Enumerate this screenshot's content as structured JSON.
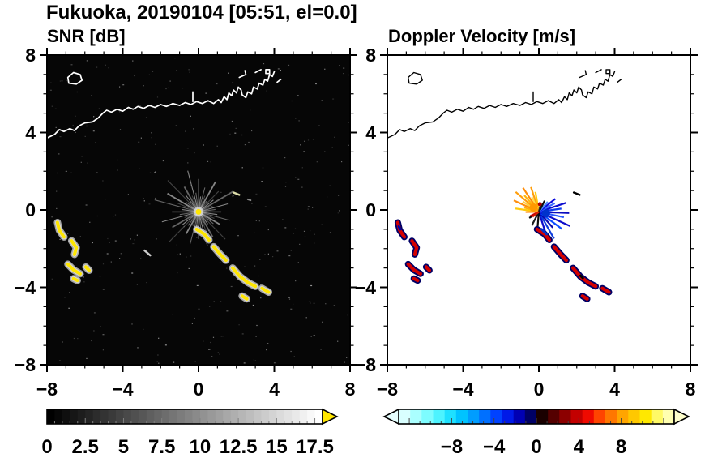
{
  "title": "Fukuoka, 20190104 [05:51, el=0.0]",
  "panels": [
    {
      "id": "snr",
      "label": "SNR [dB]",
      "bg": "#060606",
      "coast_color": "#ffffff",
      "axis": {
        "min": -8,
        "max": 8,
        "major_ticks": [
          -8,
          -4,
          0,
          4,
          8
        ],
        "tick_labels": [
          "−8",
          "−4",
          "0",
          "4",
          "8"
        ]
      },
      "colorbar": {
        "min": 0,
        "max": 18,
        "ticks": [
          0,
          2.5,
          5,
          7.5,
          10,
          12.5,
          15,
          17.5
        ],
        "labels": [
          "0",
          "2.5",
          "5",
          "7.5",
          "10",
          "12.5",
          "15",
          "17.5"
        ],
        "overflow_color": "#ffe600"
      }
    },
    {
      "id": "velocity",
      "label": "Doppler Velocity [m/s]",
      "bg": "#ffffff",
      "coast_color": "#000000",
      "axis": {
        "min": -8,
        "max": 8,
        "major_ticks": [
          -8,
          -4,
          0,
          4,
          8
        ],
        "tick_labels": [
          "−8",
          "−4",
          "0",
          "4",
          "8"
        ]
      },
      "colorbar": {
        "min": -13,
        "max": 13,
        "ticks": [
          -8,
          -4,
          0,
          4,
          8
        ],
        "labels": [
          "−8",
          "−4",
          "0",
          "4",
          "8"
        ],
        "under_color": "#e6ffff",
        "over_color": "#ffffcc",
        "segments": [
          "#d9ffff",
          "#aaffff",
          "#7dfcff",
          "#4df3ff",
          "#1ee0ff",
          "#00c3ff",
          "#009dff",
          "#0070ff",
          "#0042ff",
          "#001ae8",
          "#0000b4",
          "#000066",
          "#1a0000",
          "#550000",
          "#8c0000",
          "#c30000",
          "#ef0a00",
          "#ff4400",
          "#ff7700",
          "#ffa500",
          "#ffc800",
          "#ffe800",
          "#fff966",
          "#ffffb0"
        ]
      }
    }
  ],
  "chart_data": {
    "type": "heatmap",
    "title": "Fukuoka, 20190104 [05:51, el=0.0]",
    "description": "Dual-panel Doppler radar PPI scan at 0.0 deg elevation: left panel SNR [dB] (0 to 17.5 dB grayscale, black background), right panel Doppler Velocity [m/s] (-8 to 8 m/s diverging cyan-blue-black-red-yellow scale, white background). Coastline of Fukuoka bay overlaid; radar at origin with radial clutter streaks; curved precipitation/echo bands southwest and southeast of the radar.",
    "x_range": [
      -8,
      8
    ],
    "y_range": [
      -8,
      8
    ],
    "x_ticks": [
      -8,
      -4,
      0,
      4,
      8
    ],
    "y_ticks": [
      -8,
      -4,
      0,
      4,
      8
    ],
    "radar_origin": [
      0,
      -0.1
    ],
    "coastline": [
      [
        [
          -8,
          3.72
        ],
        [
          -7.6,
          3.9
        ],
        [
          -7.35,
          4.15
        ],
        [
          -7.1,
          4.05
        ],
        [
          -6.8,
          4.2
        ],
        [
          -6.55,
          4.1
        ],
        [
          -6.3,
          4.35
        ],
        [
          -6.0,
          4.5
        ],
        [
          -5.6,
          4.55
        ],
        [
          -5.3,
          4.75
        ],
        [
          -5.05,
          5.0
        ],
        [
          -4.85,
          5.15
        ],
        [
          -4.6,
          5.05
        ],
        [
          -4.3,
          5.2
        ],
        [
          -4.0,
          5.1
        ],
        [
          -3.7,
          5.3
        ],
        [
          -3.45,
          5.2
        ],
        [
          -3.2,
          5.35
        ],
        [
          -2.9,
          5.25
        ],
        [
          -2.6,
          5.4
        ],
        [
          -2.3,
          5.3
        ],
        [
          -2.0,
          5.45
        ],
        [
          -1.7,
          5.35
        ],
        [
          -1.35,
          5.5
        ],
        [
          -1.0,
          5.4
        ],
        [
          -0.7,
          5.55
        ],
        [
          -0.4,
          5.45
        ],
        [
          -0.1,
          5.6
        ],
        [
          0.2,
          5.5
        ],
        [
          0.5,
          5.65
        ],
        [
          0.8,
          5.5
        ],
        [
          1.05,
          5.7
        ],
        [
          1.2,
          5.55
        ],
        [
          1.35,
          5.85
        ],
        [
          1.5,
          5.7
        ],
        [
          1.6,
          6.05
        ],
        [
          1.75,
          5.9
        ],
        [
          1.85,
          6.2
        ],
        [
          2.0,
          6.05
        ],
        [
          2.1,
          6.35
        ],
        [
          2.25,
          6.2
        ],
        [
          2.3,
          5.95
        ],
        [
          2.5,
          5.8
        ],
        [
          2.6,
          6.1
        ],
        [
          2.8,
          6.0
        ],
        [
          2.9,
          6.35
        ],
        [
          3.1,
          6.25
        ],
        [
          3.2,
          6.55
        ],
        [
          3.4,
          6.45
        ],
        [
          3.5,
          6.75
        ],
        [
          3.65,
          6.65
        ],
        [
          3.75,
          7.0
        ],
        [
          3.9,
          6.9
        ],
        [
          4.0,
          7.15
        ]
      ],
      [
        [
          2.15,
          6.85
        ],
        [
          2.5,
          7.0
        ],
        [
          2.45,
          7.2
        ]
      ],
      [
        [
          3.0,
          7.1
        ],
        [
          3.3,
          7.25
        ]
      ],
      [
        [
          4.15,
          6.6
        ],
        [
          4.35,
          6.75
        ]
      ],
      [
        [
          -0.3,
          5.6
        ],
        [
          -0.3,
          6.1
        ]
      ]
    ],
    "islands": [
      [
        [
          -6.85,
          6.55
        ],
        [
          -6.9,
          6.85
        ],
        [
          -6.6,
          7.1
        ],
        [
          -6.25,
          7.0
        ],
        [
          -6.15,
          6.7
        ],
        [
          -6.45,
          6.5
        ]
      ],
      [
        [
          3.55,
          7.05
        ],
        [
          3.75,
          7.05
        ],
        [
          3.75,
          7.25
        ],
        [
          3.55,
          7.25
        ]
      ]
    ],
    "echo_bands": [
      {
        "points": [
          [
            -0.1,
            -1.0
          ],
          [
            0.3,
            -1.25
          ],
          [
            0.55,
            -1.55
          ]
        ]
      },
      {
        "points": [
          [
            0.8,
            -1.9
          ],
          [
            1.15,
            -2.3
          ],
          [
            1.45,
            -2.6
          ]
        ]
      },
      {
        "points": [
          [
            1.8,
            -3.0
          ],
          [
            2.2,
            -3.45
          ],
          [
            2.6,
            -3.75
          ],
          [
            3.0,
            -3.95
          ]
        ]
      },
      {
        "points": [
          [
            3.35,
            -4.05
          ],
          [
            3.7,
            -4.25
          ]
        ]
      },
      {
        "points": [
          [
            2.3,
            -4.45
          ],
          [
            2.55,
            -4.6
          ]
        ]
      },
      {
        "points": [
          [
            -7.45,
            -0.65
          ],
          [
            -7.35,
            -1.05
          ],
          [
            -7.1,
            -1.4
          ]
        ]
      },
      {
        "points": [
          [
            -6.7,
            -1.6
          ],
          [
            -6.45,
            -1.95
          ],
          [
            -6.55,
            -2.3
          ]
        ]
      },
      {
        "points": [
          [
            -6.9,
            -2.8
          ],
          [
            -6.6,
            -3.1
          ],
          [
            -6.25,
            -3.3
          ]
        ]
      },
      {
        "points": [
          [
            -5.95,
            -2.95
          ],
          [
            -5.78,
            -3.12
          ]
        ]
      },
      {
        "points": [
          [
            -6.6,
            -3.55
          ],
          [
            -6.4,
            -3.65
          ]
        ]
      }
    ],
    "snr_rays": [
      [
        0,
        1.2
      ],
      [
        8,
        0.9
      ],
      [
        15,
        1.6
      ],
      [
        22,
        0.8
      ],
      [
        30,
        2.1
      ],
      [
        38,
        1.0
      ],
      [
        45,
        1.5
      ],
      [
        52,
        0.7
      ],
      [
        60,
        1.8
      ],
      [
        68,
        0.9
      ],
      [
        75,
        1.3
      ],
      [
        82,
        0.8
      ],
      [
        90,
        1.7
      ],
      [
        98,
        1.0
      ],
      [
        105,
        2.2
      ],
      [
        112,
        0.9
      ],
      [
        120,
        1.5
      ],
      [
        128,
        1.1
      ],
      [
        135,
        2.3
      ],
      [
        142,
        0.8
      ],
      [
        150,
        1.9
      ],
      [
        158,
        1.2
      ],
      [
        165,
        2.4
      ],
      [
        172,
        0.9
      ],
      [
        180,
        1.4
      ],
      [
        188,
        1.0
      ],
      [
        195,
        2.0
      ],
      [
        202,
        0.8
      ],
      [
        210,
        1.6
      ],
      [
        218,
        1.1
      ],
      [
        225,
        2.2
      ],
      [
        232,
        0.9
      ],
      [
        240,
        1.3
      ],
      [
        248,
        0.8
      ],
      [
        255,
        1.7
      ],
      [
        262,
        1.0
      ],
      [
        270,
        1.4
      ],
      [
        278,
        0.9
      ],
      [
        285,
        1.8
      ],
      [
        292,
        1.1
      ],
      [
        300,
        1.5
      ],
      [
        308,
        0.8
      ],
      [
        315,
        2.0
      ],
      [
        322,
        1.0
      ],
      [
        330,
        1.3
      ],
      [
        338,
        0.9
      ],
      [
        345,
        1.7
      ],
      [
        352,
        1.0
      ]
    ],
    "vel_rays": [
      [
        100,
        1.05,
        "#ffc800"
      ],
      [
        108,
        1.35,
        "#ff9900"
      ],
      [
        116,
        0.85,
        "#ffdd44"
      ],
      [
        124,
        1.5,
        "#ff8800"
      ],
      [
        132,
        1.15,
        "#ffb400"
      ],
      [
        140,
        1.6,
        "#ff9900"
      ],
      [
        148,
        1.0,
        "#ffcc33"
      ],
      [
        156,
        1.45,
        "#ff8800"
      ],
      [
        164,
        0.8,
        "#ffaa00"
      ],
      [
        172,
        1.25,
        "#ffc800"
      ],
      [
        181,
        0.7,
        "#ff9933"
      ],
      [
        -72,
        1.25,
        "#0000c8"
      ],
      [
        -60,
        1.6,
        "#0033dd"
      ],
      [
        -48,
        1.1,
        "#0000aa"
      ],
      [
        -36,
        1.5,
        "#0044ff"
      ],
      [
        -24,
        1.8,
        "#0000c8"
      ],
      [
        -12,
        1.35,
        "#2255ff"
      ],
      [
        -2,
        1.6,
        "#0000bb"
      ],
      [
        8,
        1.2,
        "#0033ee"
      ],
      [
        18,
        1.5,
        "#0000cc"
      ],
      [
        28,
        0.95,
        "#3366ff"
      ],
      [
        38,
        1.1,
        "#0000dd"
      ],
      [
        48,
        0.7,
        "#4488ff"
      ],
      [
        -95,
        1.05,
        "#000000"
      ],
      [
        -118,
        0.8,
        "#111111"
      ],
      [
        62,
        0.65,
        "#000000"
      ],
      [
        76,
        0.5,
        "#222222"
      ],
      [
        -148,
        0.6,
        "#000000"
      ],
      [
        205,
        0.5,
        "#c80000"
      ],
      [
        218,
        0.42,
        "#dd2200"
      ]
    ],
    "extra_marks": {
      "snr": [
        {
          "points": [
            [
              -2.85,
              -2.1
            ],
            [
              -2.55,
              -2.35
            ]
          ],
          "color": "#cccccc",
          "w": 2.5
        },
        {
          "points": [
            [
              1.85,
              0.9
            ],
            [
              2.15,
              0.78
            ]
          ],
          "color": "#ddddaa",
          "w": 2.5
        },
        {
          "points": [
            [
              2.6,
              0.55
            ],
            [
              2.75,
              0.5
            ]
          ],
          "color": "#888888",
          "w": 2
        }
      ],
      "vel": [
        {
          "points": [
            [
              1.85,
              0.9
            ],
            [
              2.15,
              0.78
            ]
          ],
          "color": "#000000",
          "w": 2.5
        },
        {
          "points": [
            [
              0.15,
              -1.0
            ],
            [
              0.4,
              -1.25
            ]
          ],
          "color": "#0033cc",
          "w": 3
        },
        {
          "points": [
            [
              -7.4,
              -0.85
            ],
            [
              -7.32,
              -1.0
            ]
          ],
          "color": "#0000aa",
          "w": 3
        },
        {
          "points": [
            [
              2.2,
              -3.4
            ],
            [
              2.32,
              -3.52
            ]
          ],
          "color": "#000000",
          "w": 3
        }
      ]
    },
    "center_markers": {
      "snr": [
        {
          "xy": [
            0,
            -0.1
          ],
          "r": 6,
          "color": "#ffffff",
          "opacity": 0.5
        },
        {
          "xy": [
            0,
            -0.1
          ],
          "r": 3.5,
          "color": "#ffe600",
          "opacity": 1
        }
      ],
      "vel": [
        {
          "xy": [
            -0.28,
            0.12
          ],
          "r": 5,
          "color": "#ff9900",
          "opacity": 1
        },
        {
          "xy": [
            0.38,
            -0.18
          ],
          "r": 5,
          "color": "#0033cc",
          "opacity": 1
        },
        {
          "xy": [
            0.05,
            0.3
          ],
          "r": 2.5,
          "color": "#b40000",
          "opacity": 1
        }
      ]
    }
  }
}
